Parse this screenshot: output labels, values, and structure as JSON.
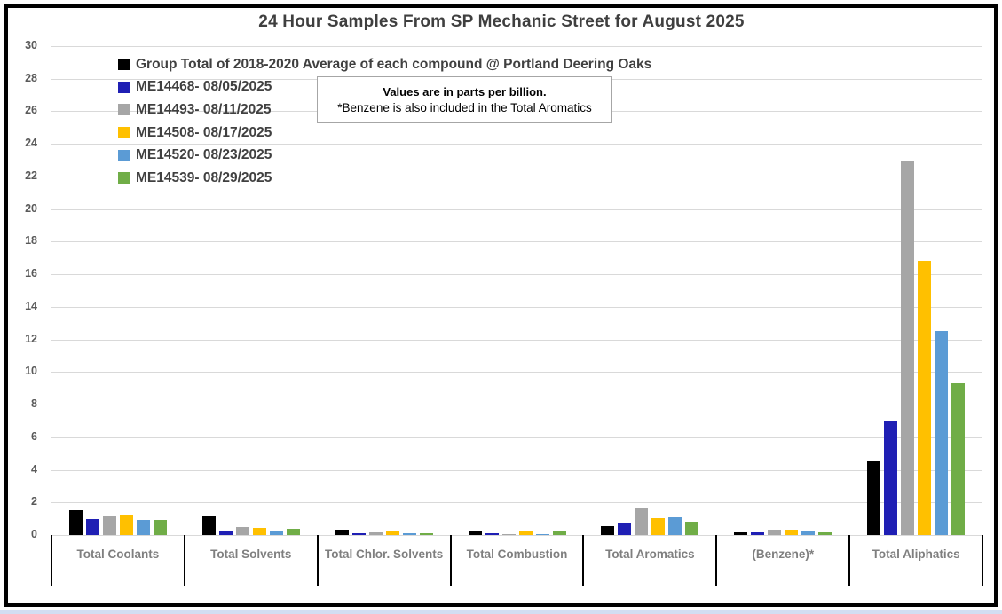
{
  "title": "24 Hour Samples From SP Mechanic Street for August 2025",
  "note_box": {
    "line1": "Values are in parts per billion.",
    "line2": "*Benzene is also included in the Total Aromatics"
  },
  "y_axis": {
    "tick_labels": [
      "0",
      "2",
      "4",
      "6",
      "8",
      "10",
      "12",
      "14",
      "16",
      "18",
      "20",
      "22",
      "24",
      "26",
      "28",
      "30"
    ]
  },
  "chart_data": {
    "type": "bar",
    "title": "24 Hour Samples From SP Mechanic Street for August 2025",
    "unit": "parts per billion",
    "categories": [
      "Total Coolants",
      "Total Solvents",
      "Total Chlor. Solvents",
      "Total Combustion",
      "Total Aromatics",
      "(Benzene)*",
      "Total Aliphatics"
    ],
    "series": [
      {
        "name": "Group Total of 2018-2020 Average of each compound @ Portland Deering Oaks",
        "color": "#000000",
        "values": [
          1.55,
          1.15,
          0.35,
          0.25,
          0.55,
          0.15,
          4.5
        ]
      },
      {
        "name": "ME14468- 08/05/2025",
        "color": "#1f1fb4",
        "values": [
          1.0,
          0.2,
          0.12,
          0.12,
          0.75,
          0.15,
          7.0
        ]
      },
      {
        "name": "ME14493- 08/11/2025",
        "color": "#a6a6a6",
        "values": [
          1.2,
          0.5,
          0.17,
          0.08,
          1.65,
          0.3,
          23.0
        ]
      },
      {
        "name": "ME14508- 08/17/2025",
        "color": "#ffc000",
        "values": [
          1.25,
          0.45,
          0.2,
          0.22,
          1.05,
          0.3,
          16.8
        ]
      },
      {
        "name": "ME14520- 08/23/2025",
        "color": "#5b9bd5",
        "values": [
          0.95,
          0.25,
          0.12,
          0.08,
          1.1,
          0.2,
          12.5
        ]
      },
      {
        "name": "ME14539- 08/29/2025",
        "color": "#70ad47",
        "values": [
          0.95,
          0.4,
          0.1,
          0.2,
          0.8,
          0.15,
          9.3
        ]
      }
    ],
    "ylim": [
      0,
      30
    ],
    "ytick_step": 2,
    "grid": true,
    "legend_position": "top-left-inside"
  },
  "colors": {
    "gridline": "#d9d9d9",
    "axis_text": "#595959",
    "category_text": "#7f7f7f",
    "title_text": "#3f3f3f",
    "legend_text": "#404040",
    "frame": "#000000",
    "note_border": "#a6a6a6",
    "bottom_strip": "#d3def2"
  }
}
